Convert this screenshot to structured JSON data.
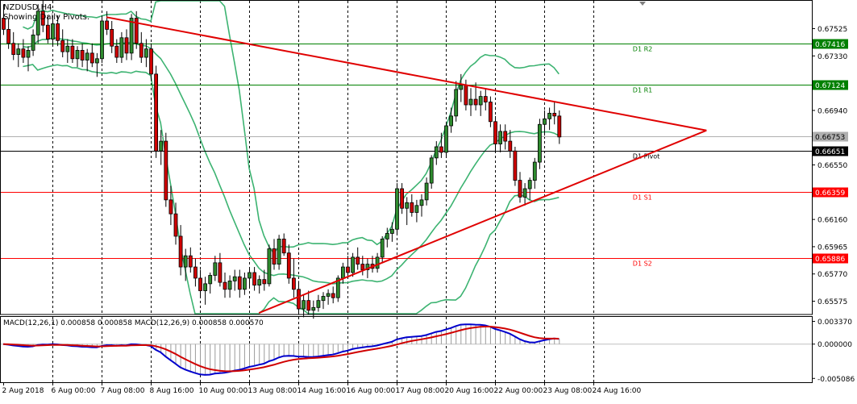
{
  "header": {
    "symbol": "NZDUSD,H4",
    "subtitle": "Showing Daily Pivots."
  },
  "chart_data": [
    {
      "type": "candlestick",
      "title": "NZDUSD,H4",
      "price_axis": {
        "ticks": [
          0.67525,
          0.6733,
          0.6694,
          0.6655,
          0.6616,
          0.65965,
          0.6577,
          0.65575
        ],
        "range": [
          0.6548,
          0.6773
        ]
      },
      "time_axis": {
        "labels": [
          "2 Aug 2018",
          "6 Aug 00:00",
          "7 Aug 08:00",
          "8 Aug 16:00",
          "10 Aug 00:00",
          "13 Aug 08:00",
          "14 Aug 16:00",
          "16 Aug 00:00",
          "17 Aug 08:00",
          "20 Aug 16:00",
          "22 Aug 00:00",
          "23 Aug 08:00",
          "24 Aug 16:00"
        ],
        "bar_index": [
          0,
          10,
          20,
          30,
          40,
          50,
          60,
          70,
          80,
          90,
          100,
          110,
          120
        ]
      },
      "levels": [
        {
          "name": "D1 R2",
          "value": 0.67416,
          "color": "#008000",
          "tag": "0.67416"
        },
        {
          "name": "D1 R1",
          "value": 0.67124,
          "color": "#008000",
          "tag": "0.67124"
        },
        {
          "name": "D1 Pivot",
          "value": 0.66651,
          "color": "#000000",
          "tag": "0.66651"
        },
        {
          "name": "D1 S1",
          "value": 0.66359,
          "color": "#ff0000",
          "tag": "0.66359"
        },
        {
          "name": "D1 S2",
          "value": 0.65886,
          "color": "#ff0000",
          "tag": "0.65886"
        }
      ],
      "current_price": {
        "value": 0.66753,
        "tag": "0.66753"
      },
      "candles": [
        [
          0.676,
          0.677,
          0.6748,
          0.6752
        ],
        [
          0.6752,
          0.676,
          0.6738,
          0.6742
        ],
        [
          0.6742,
          0.675,
          0.673,
          0.6734
        ],
        [
          0.6734,
          0.6742,
          0.6725,
          0.6738
        ],
        [
          0.6738,
          0.6745,
          0.6728,
          0.6732
        ],
        [
          0.6732,
          0.674,
          0.6722,
          0.6737
        ],
        [
          0.6737,
          0.6752,
          0.6733,
          0.6748
        ],
        [
          0.6748,
          0.677,
          0.6742,
          0.6765
        ],
        [
          0.6765,
          0.6775,
          0.675,
          0.6755
        ],
        [
          0.6755,
          0.6762,
          0.6742,
          0.6745
        ],
        [
          0.6745,
          0.676,
          0.674,
          0.6756
        ],
        [
          0.6756,
          0.6762,
          0.674,
          0.6744
        ],
        [
          0.6744,
          0.6752,
          0.6732,
          0.6736
        ],
        [
          0.6736,
          0.6745,
          0.6728,
          0.674
        ],
        [
          0.674,
          0.6745,
          0.6728,
          0.6731
        ],
        [
          0.6731,
          0.674,
          0.6725,
          0.6737
        ],
        [
          0.6737,
          0.6742,
          0.6725,
          0.673
        ],
        [
          0.673,
          0.6738,
          0.6722,
          0.6735
        ],
        [
          0.6735,
          0.6742,
          0.6725,
          0.6728
        ],
        [
          0.6728,
          0.6735,
          0.6718,
          0.6731
        ],
        [
          0.6731,
          0.6762,
          0.6728,
          0.6758
        ],
        [
          0.6758,
          0.6765,
          0.6748,
          0.6752
        ],
        [
          0.6752,
          0.6758,
          0.6735,
          0.674
        ],
        [
          0.674,
          0.6745,
          0.6728,
          0.6732
        ],
        [
          0.6732,
          0.675,
          0.6728,
          0.6746
        ],
        [
          0.6746,
          0.6752,
          0.673,
          0.6735
        ],
        [
          0.6735,
          0.6763,
          0.673,
          0.676
        ],
        [
          0.676,
          0.6765,
          0.6738,
          0.6742
        ],
        [
          0.6742,
          0.675,
          0.6728,
          0.6732
        ],
        [
          0.6732,
          0.6745,
          0.6725,
          0.6738
        ],
        [
          0.6738,
          0.6742,
          0.6715,
          0.672
        ],
        [
          0.672,
          0.6726,
          0.666,
          0.6665
        ],
        [
          0.6665,
          0.668,
          0.6655,
          0.6672
        ],
        [
          0.6672,
          0.6678,
          0.6625,
          0.663
        ],
        [
          0.663,
          0.664,
          0.6612,
          0.662
        ],
        [
          0.662,
          0.6628,
          0.6598,
          0.6604
        ],
        [
          0.6604,
          0.6612,
          0.6576,
          0.6582
        ],
        [
          0.6582,
          0.6595,
          0.6572,
          0.659
        ],
        [
          0.659,
          0.6596,
          0.6578,
          0.6582
        ],
        [
          0.6582,
          0.6588,
          0.6568,
          0.6574
        ],
        [
          0.6574,
          0.658,
          0.656,
          0.6565
        ],
        [
          0.6565,
          0.6575,
          0.6555,
          0.657
        ],
        [
          0.657,
          0.6578,
          0.6563,
          0.6576
        ],
        [
          0.6576,
          0.659,
          0.6572,
          0.6585
        ],
        [
          0.6585,
          0.6592,
          0.6568,
          0.6571
        ],
        [
          0.6571,
          0.6578,
          0.656,
          0.6566
        ],
        [
          0.6566,
          0.6576,
          0.656,
          0.6572
        ],
        [
          0.6572,
          0.658,
          0.6565,
          0.6575
        ],
        [
          0.6575,
          0.658,
          0.656,
          0.6566
        ],
        [
          0.6566,
          0.6578,
          0.6562,
          0.6574
        ],
        [
          0.6574,
          0.6582,
          0.6568,
          0.6578
        ],
        [
          0.6578,
          0.6582,
          0.6565,
          0.6569
        ],
        [
          0.6569,
          0.6576,
          0.6563,
          0.6573
        ],
        [
          0.6573,
          0.658,
          0.6565,
          0.657
        ],
        [
          0.657,
          0.6598,
          0.6568,
          0.6595
        ],
        [
          0.6595,
          0.6602,
          0.658,
          0.6584
        ],
        [
          0.6584,
          0.6605,
          0.658,
          0.6602
        ],
        [
          0.6602,
          0.6606,
          0.659,
          0.6592
        ],
        [
          0.6592,
          0.6598,
          0.657,
          0.6574
        ],
        [
          0.6574,
          0.6588,
          0.656,
          0.6566
        ],
        [
          0.6566,
          0.6572,
          0.6548,
          0.6552
        ],
        [
          0.6552,
          0.6562,
          0.6546,
          0.6558
        ],
        [
          0.6558,
          0.6565,
          0.6548,
          0.6551
        ],
        [
          0.6551,
          0.6558,
          0.6545,
          0.6553
        ],
        [
          0.6553,
          0.6562,
          0.655,
          0.6558
        ],
        [
          0.6558,
          0.6564,
          0.6552,
          0.6561
        ],
        [
          0.6561,
          0.6566,
          0.6555,
          0.6563
        ],
        [
          0.6563,
          0.6568,
          0.6556,
          0.656
        ],
        [
          0.656,
          0.6576,
          0.6557,
          0.6574
        ],
        [
          0.6574,
          0.6585,
          0.657,
          0.6582
        ],
        [
          0.6582,
          0.659,
          0.6574,
          0.6578
        ],
        [
          0.6578,
          0.6592,
          0.6575,
          0.6589
        ],
        [
          0.6589,
          0.6596,
          0.658,
          0.6584
        ],
        [
          0.6584,
          0.659,
          0.6576,
          0.658
        ],
        [
          0.658,
          0.6588,
          0.6574,
          0.6584
        ],
        [
          0.6584,
          0.659,
          0.6578,
          0.6581
        ],
        [
          0.6581,
          0.6592,
          0.6578,
          0.6589
        ],
        [
          0.6589,
          0.6604,
          0.6585,
          0.6602
        ],
        [
          0.6602,
          0.661,
          0.6596,
          0.6606
        ],
        [
          0.6606,
          0.6614,
          0.66,
          0.6609
        ],
        [
          0.6609,
          0.6642,
          0.6605,
          0.6638
        ],
        [
          0.6638,
          0.6642,
          0.662,
          0.6624
        ],
        [
          0.6624,
          0.6632,
          0.6612,
          0.6628
        ],
        [
          0.6628,
          0.6634,
          0.6618,
          0.6621
        ],
        [
          0.6621,
          0.663,
          0.6614,
          0.6626
        ],
        [
          0.6626,
          0.6634,
          0.6618,
          0.663
        ],
        [
          0.663,
          0.6646,
          0.6626,
          0.6642
        ],
        [
          0.6642,
          0.6662,
          0.6638,
          0.666
        ],
        [
          0.666,
          0.6672,
          0.6655,
          0.6668
        ],
        [
          0.6668,
          0.6678,
          0.666,
          0.6664
        ],
        [
          0.6664,
          0.6686,
          0.666,
          0.6683
        ],
        [
          0.6683,
          0.6696,
          0.6678,
          0.669
        ],
        [
          0.669,
          0.6715,
          0.6686,
          0.6709
        ],
        [
          0.6709,
          0.672,
          0.67,
          0.6712
        ],
        [
          0.6712,
          0.6716,
          0.6694,
          0.6698
        ],
        [
          0.6698,
          0.671,
          0.669,
          0.6702
        ],
        [
          0.6702,
          0.6714,
          0.6694,
          0.6698
        ],
        [
          0.6698,
          0.6708,
          0.669,
          0.6704
        ],
        [
          0.6704,
          0.671,
          0.6694,
          0.67
        ],
        [
          0.67,
          0.6704,
          0.6682,
          0.6686
        ],
        [
          0.6686,
          0.669,
          0.6664,
          0.667
        ],
        [
          0.667,
          0.6684,
          0.6664,
          0.6679
        ],
        [
          0.6679,
          0.6684,
          0.6666,
          0.6672
        ],
        [
          0.6672,
          0.668,
          0.666,
          0.6665
        ],
        [
          0.6665,
          0.6668,
          0.664,
          0.6644
        ],
        [
          0.6644,
          0.665,
          0.6628,
          0.6632
        ],
        [
          0.6632,
          0.6642,
          0.6626,
          0.6638
        ],
        [
          0.6638,
          0.6646,
          0.663,
          0.6644
        ],
        [
          0.6644,
          0.666,
          0.6638,
          0.6657
        ],
        [
          0.6657,
          0.6688,
          0.6652,
          0.6684
        ],
        [
          0.6684,
          0.6694,
          0.6676,
          0.6688
        ],
        [
          0.6688,
          0.6696,
          0.668,
          0.6692
        ],
        [
          0.6692,
          0.67,
          0.6684,
          0.669
        ],
        [
          0.669,
          0.6694,
          0.667,
          0.6675
        ]
      ],
      "trendlines": [
        {
          "name": "upper",
          "from": {
            "bar": 21,
            "price": 0.67607
          },
          "to": {
            "bar": 143,
            "price": 0.66797
          },
          "color": "#e00000"
        },
        {
          "name": "lower",
          "from": {
            "bar": 52,
            "price": 0.65491
          },
          "to": {
            "bar": 143,
            "price": 0.66797
          },
          "color": "#e00000"
        }
      ],
      "bollinger": {
        "period": 20,
        "deviations": 2,
        "color": "#3cb371"
      }
    },
    {
      "type": "macd",
      "label": "MACD(12,26,1) 0.000858 0.000858 MACD(12,26,9) 0.000858 0.000570",
      "value_axis": {
        "ticks": [
          0.00337,
          0.0,
          -0.005086
        ],
        "tick_labels": [
          "0.003370",
          "0.000000",
          "-0.005086"
        ],
        "range": [
          -0.00565,
          0.00415
        ]
      },
      "fast_period": 12,
      "slow_period": 26,
      "signal_period": 9,
      "histogram": "macd_minus_zero",
      "colors": {
        "macd": "#0000cc",
        "signal": "#d00000",
        "histogram": "#9a9a9a"
      }
    }
  ]
}
